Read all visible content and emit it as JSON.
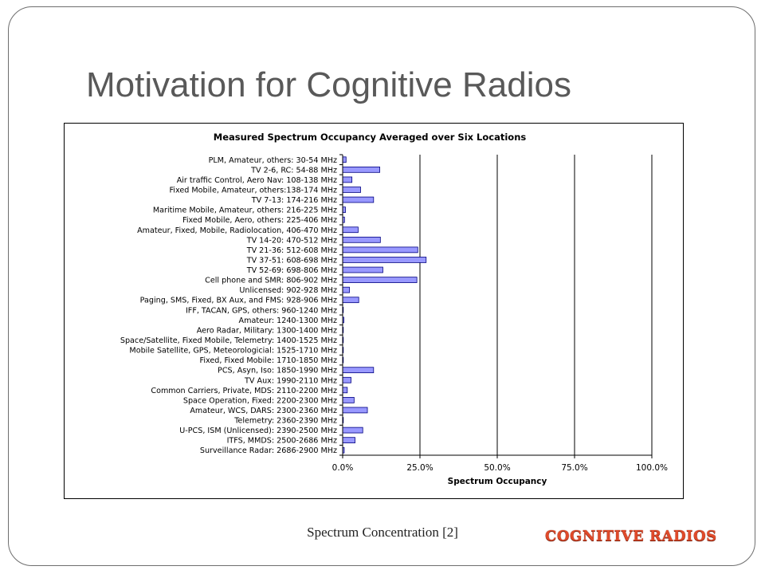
{
  "slide": {
    "title": "Motivation for Cognitive Radios",
    "caption": "Spectrum Concentration [2]",
    "logo": "COGNITIVE RADIOS"
  },
  "colors": {
    "bar_fill": "#9999ff",
    "bar_stroke": "#000080",
    "title_color": "#595959",
    "logo_color": "#e04a2a"
  },
  "chart_data": {
    "type": "bar",
    "orientation": "horizontal",
    "title": "Measured Spectrum Occupancy Averaged over Six Locations",
    "xlabel": "Spectrum Occupancy",
    "ylabel": "",
    "xlim": [
      0,
      1
    ],
    "xticks": [
      0,
      0.25,
      0.5,
      0.75,
      1
    ],
    "xtick_labels": [
      "0.0%",
      "25.0%",
      "50.0%",
      "75.0%",
      "100.0%"
    ],
    "grid": "vertical",
    "legend": "none",
    "categories": [
      "PLM, Amateur, others: 30-54 MHz",
      "TV 2-6, RC: 54-88 MHz",
      "Air traffic Control, Aero Nav: 108-138 MHz",
      "Fixed Mobile, Amateur, others:138-174 MHz",
      "TV 7-13: 174-216 MHz",
      "Maritime Mobile, Amateur, others: 216-225 MHz",
      "Fixed Mobile, Aero, others: 225-406 MHz",
      "Amateur, Fixed, Mobile, Radiolocation, 406-470 MHz",
      "TV 14-20: 470-512 MHz",
      "TV 21-36: 512-608 MHz",
      "TV 37-51: 608-698 MHz",
      "TV 52-69: 698-806 MHz",
      "Cell phone and SMR: 806-902 MHz",
      "Unlicensed: 902-928 MHz",
      "Paging, SMS, Fixed, BX Aux, and FMS: 928-906 MHz",
      "IFF, TACAN, GPS, others: 960-1240 MHz",
      "Amateur: 1240-1300 MHz",
      "Aero Radar, Military: 1300-1400 MHz",
      "Space/Satellite, Fixed Mobile, Telemetry: 1400-1525 MHz",
      "Mobile Satellite, GPS, Meteorologicial: 1525-1710 MHz",
      "Fixed, Fixed Mobile: 1710-1850 MHz",
      "PCS, Asyn, Iso: 1850-1990 MHz",
      "TV Aux: 1990-2110 MHz",
      "Common Carriers, Private, MDS: 2110-2200 MHz",
      "Space Operation, Fixed: 2200-2300 MHz",
      "Amateur, WCS, DARS: 2300-2360 MHz",
      "Telemetry: 2360-2390 MHz",
      "U-PCS, ISM (Unlicensed): 2390-2500 MHz",
      "ITFS, MMDS: 2500-2686 MHz",
      "Surveillance Radar: 2686-2900 MHz"
    ],
    "values": [
      0.011,
      0.12,
      0.03,
      0.058,
      0.1,
      0.009,
      0.006,
      0.05,
      0.122,
      0.243,
      0.27,
      0.13,
      0.24,
      0.022,
      0.052,
      0.002,
      0.004,
      0.001,
      0.001,
      0.001,
      0.001,
      0.1,
      0.027,
      0.015,
      0.037,
      0.08,
      0.002,
      0.065,
      0.04,
      0.005
    ]
  }
}
